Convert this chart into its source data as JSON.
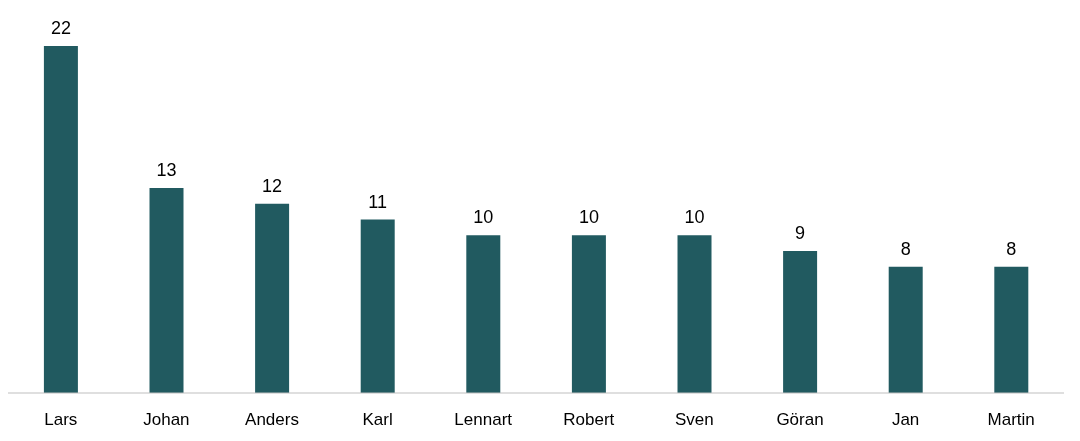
{
  "chart_data": {
    "type": "bar",
    "categories": [
      "Lars",
      "Johan",
      "Anders",
      "Karl",
      "Lennart",
      "Robert",
      "Sven",
      "Göran",
      "Jan",
      "Martin"
    ],
    "values": [
      22,
      13,
      12,
      11,
      10,
      10,
      10,
      9,
      8,
      8
    ],
    "color": "#215a60",
    "data_labels": true
  }
}
